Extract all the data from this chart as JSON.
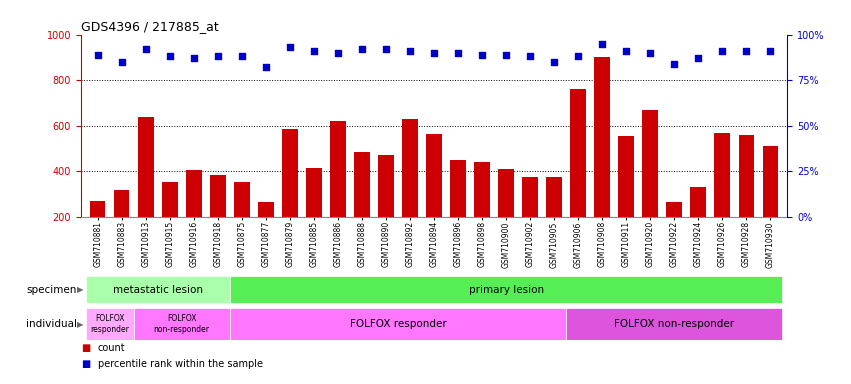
{
  "title": "GDS4396 / 217885_at",
  "categories": [
    "GSM710881",
    "GSM710883",
    "GSM710913",
    "GSM710915",
    "GSM710916",
    "GSM710918",
    "GSM710875",
    "GSM710877",
    "GSM710879",
    "GSM710885",
    "GSM710886",
    "GSM710888",
    "GSM710890",
    "GSM710892",
    "GSM710894",
    "GSM710896",
    "GSM710898",
    "GSM710900",
    "GSM710902",
    "GSM710905",
    "GSM710906",
    "GSM710908",
    "GSM710911",
    "GSM710920",
    "GSM710922",
    "GSM710924",
    "GSM710926",
    "GSM710928",
    "GSM710930"
  ],
  "bar_values": [
    270,
    320,
    640,
    355,
    405,
    385,
    355,
    265,
    585,
    415,
    620,
    485,
    470,
    630,
    565,
    450,
    440,
    410,
    375,
    375,
    760,
    900,
    555,
    670,
    265,
    330,
    570,
    560,
    510
  ],
  "percentile_values": [
    89,
    85,
    92,
    88,
    87,
    88,
    88,
    82,
    93,
    91,
    90,
    92,
    92,
    91,
    90,
    90,
    89,
    89,
    88,
    85,
    88,
    95,
    91,
    90,
    84,
    87,
    91,
    91,
    91
  ],
  "bar_color": "#cc0000",
  "dot_color": "#0000cc",
  "ylim_left": [
    200,
    1000
  ],
  "ylim_right": [
    0,
    100
  ],
  "yticks_left": [
    200,
    400,
    600,
    800,
    1000
  ],
  "yticks_right": [
    0,
    25,
    50,
    75,
    100
  ],
  "gridlines": [
    400,
    600,
    800
  ],
  "spec_labels": [
    "metastatic lesion",
    "primary lesion"
  ],
  "spec_starts": [
    0,
    6
  ],
  "spec_ends": [
    6,
    29
  ],
  "spec_colors": [
    "#aaffaa",
    "#55ee55"
  ],
  "ind_labels": [
    "FOLFOX\nresponder",
    "FOLFOX\nnon-responder",
    "FOLFOX responder",
    "FOLFOX non-responder"
  ],
  "ind_starts": [
    0,
    2,
    6,
    20
  ],
  "ind_ends": [
    2,
    6,
    20,
    29
  ],
  "ind_colors": [
    "#ffaaff",
    "#ff77ff",
    "#ff77ff",
    "#dd55dd"
  ],
  "legend_items": [
    {
      "label": "count",
      "color": "#cc0000"
    },
    {
      "label": "percentile rank within the sample",
      "color": "#0000cc"
    }
  ]
}
